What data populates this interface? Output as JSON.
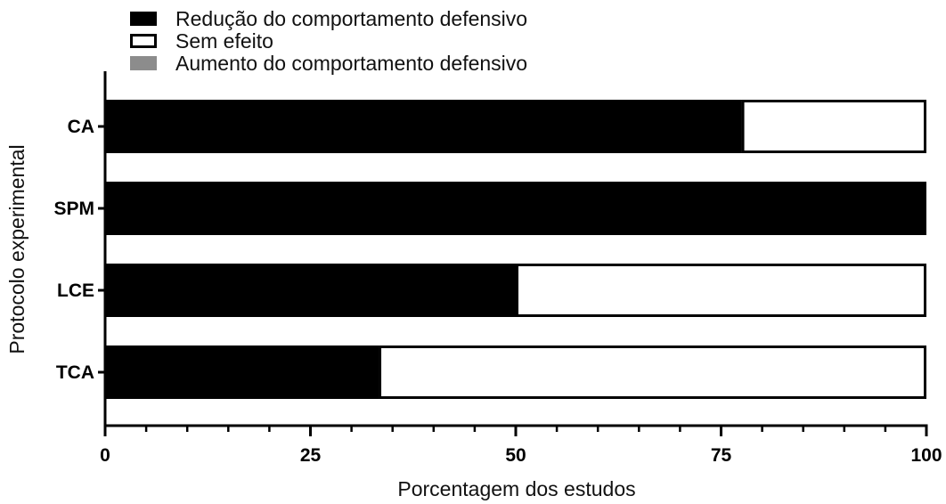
{
  "chart_data": {
    "type": "bar",
    "orientation": "horizontal",
    "stacked": true,
    "categories": [
      "CA",
      "SPM",
      "LCE",
      "TCA"
    ],
    "series": [
      {
        "name": "Redução do comportamento defensivo",
        "values": [
          77.5,
          100,
          50,
          33.3
        ],
        "color": "#000000"
      },
      {
        "name": "Sem efeito",
        "values": [
          22.5,
          0,
          50,
          66.7
        ],
        "color": "#ffffff"
      },
      {
        "name": "Aumento do comportamento defensivo",
        "values": [
          0,
          0,
          0,
          0
        ],
        "color": "#8c8c8c"
      }
    ],
    "x_ticks": [
      "0",
      "25",
      "50",
      "75",
      "100"
    ],
    "xlim": [
      0,
      100
    ],
    "xlabel": "Porcentagem dos estudos",
    "ylabel": "Protocolo experimental",
    "legend_position": "top-left",
    "grid": false
  }
}
